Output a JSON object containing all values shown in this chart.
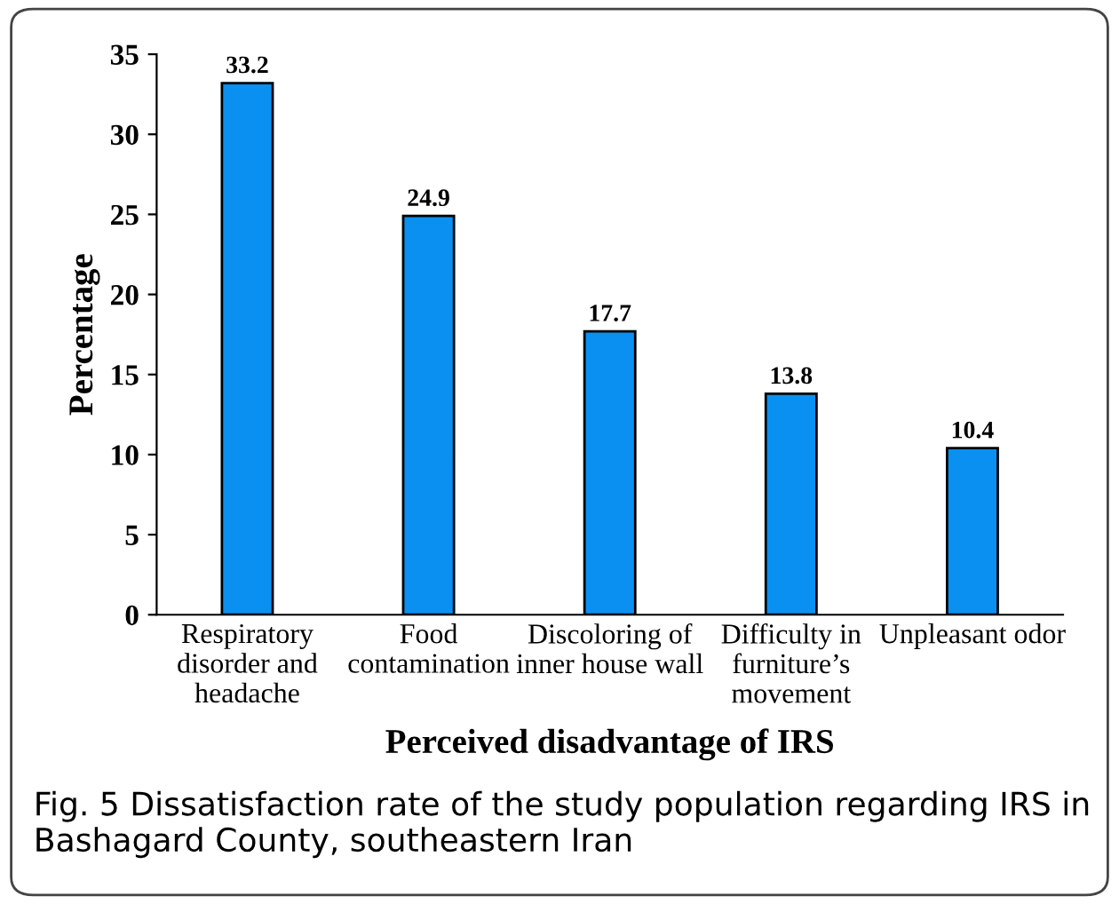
{
  "chart_data": {
    "type": "bar",
    "xlabel": "Perceived disadvantage of IRS",
    "ylabel": "Percentage",
    "categories": [
      "Respiratory\ndisorder and\nheadache",
      "Food\ncontamination",
      "Discoloring of\ninner house wall",
      "Difficulty in\nfurniture’s\nmovement",
      "Unpleasant odor"
    ],
    "values": [
      33.2,
      24.9,
      17.7,
      13.8,
      10.4
    ],
    "color": "#0a90f0",
    "data_labels": true,
    "ylim": [
      0,
      35
    ],
    "yticks": [
      0,
      5,
      10,
      15,
      20,
      25,
      30,
      35
    ],
    "grid": false,
    "legend": false,
    "annotations": [
      "Fig. 5 Dissatisfaction rate of the study population regarding IRS in Bashagard County, southeastern Iran"
    ]
  }
}
